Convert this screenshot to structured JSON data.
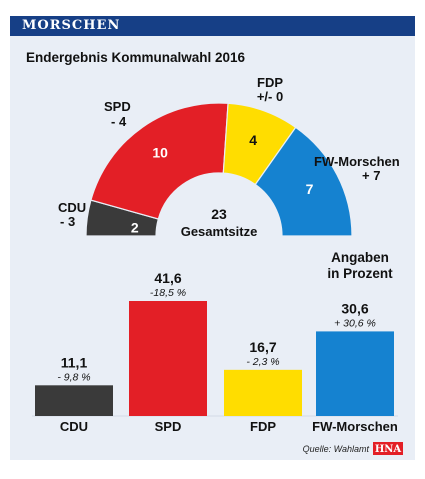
{
  "header": {
    "banner": "MORSCHEN"
  },
  "seats": {
    "subtitle": "Endergebnis Kommunalwahl 2016",
    "total": "23",
    "total_label": "Gesamtsitze",
    "parties": [
      {
        "name": "CDU",
        "seats": 2,
        "change": "- 3",
        "color": "#3a3a3a",
        "seat_text_color": "#ffffff"
      },
      {
        "name": "SPD",
        "seats": 10,
        "change": "- 4",
        "color": "#e31f26",
        "seat_text_color": "#ffffff"
      },
      {
        "name": "FDP",
        "seats": 4,
        "change": "+/- 0",
        "color": "#ffdd00",
        "seat_text_color": "#111111"
      },
      {
        "name": "FW-Morschen",
        "seats": 7,
        "change": "+ 7",
        "color": "#1582d0",
        "seat_text_color": "#ffffff"
      }
    ]
  },
  "chart_data": {
    "type": "bar",
    "title": "Angaben in Prozent",
    "title_lines": [
      "Angaben",
      "in Prozent"
    ],
    "categories": [
      "CDU",
      "SPD",
      "FDP",
      "FW-Morschen"
    ],
    "values": [
      11.1,
      41.6,
      16.7,
      30.6
    ],
    "value_labels": [
      "11,1",
      "41,6",
      "16,7",
      "30,6"
    ],
    "change_labels": [
      "- 9,8 %",
      "-18,5 %",
      "- 2,3 %",
      "+ 30,6 %"
    ],
    "colors": [
      "#3a3a3a",
      "#e31f26",
      "#ffdd00",
      "#1582d0"
    ],
    "ylim": [
      0,
      45
    ]
  },
  "footer": {
    "source": "Quelle: Wahlamt",
    "logo": "HNA",
    "logo_color": "#e31f26"
  }
}
